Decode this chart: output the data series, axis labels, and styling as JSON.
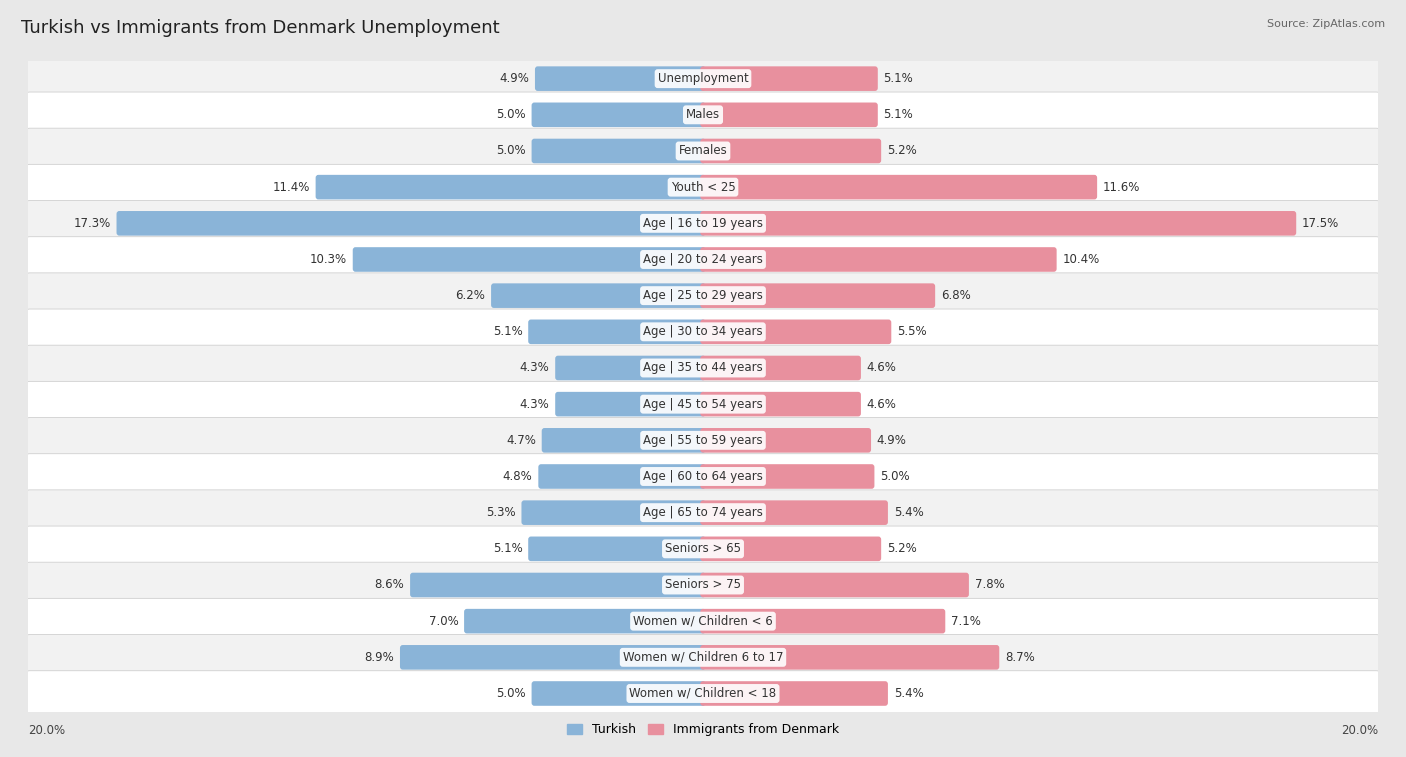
{
  "title": "Turkish vs Immigrants from Denmark Unemployment",
  "source": "Source: ZipAtlas.com",
  "categories": [
    "Unemployment",
    "Males",
    "Females",
    "Youth < 25",
    "Age | 16 to 19 years",
    "Age | 20 to 24 years",
    "Age | 25 to 29 years",
    "Age | 30 to 34 years",
    "Age | 35 to 44 years",
    "Age | 45 to 54 years",
    "Age | 55 to 59 years",
    "Age | 60 to 64 years",
    "Age | 65 to 74 years",
    "Seniors > 65",
    "Seniors > 75",
    "Women w/ Children < 6",
    "Women w/ Children 6 to 17",
    "Women w/ Children < 18"
  ],
  "turkish_values": [
    4.9,
    5.0,
    5.0,
    11.4,
    17.3,
    10.3,
    6.2,
    5.1,
    4.3,
    4.3,
    4.7,
    4.8,
    5.3,
    5.1,
    8.6,
    7.0,
    8.9,
    5.0
  ],
  "denmark_values": [
    5.1,
    5.1,
    5.2,
    11.6,
    17.5,
    10.4,
    6.8,
    5.5,
    4.6,
    4.6,
    4.9,
    5.0,
    5.4,
    5.2,
    7.8,
    7.1,
    8.7,
    5.4
  ],
  "turkish_color": "#8ab4d8",
  "denmark_color": "#e8909e",
  "turkish_label": "Turkish",
  "denmark_label": "Immigrants from Denmark",
  "axis_max": 20.0,
  "bg_color": "#e8e8e8",
  "row_bg_light": "#f2f2f2",
  "row_bg_white": "#ffffff",
  "title_fontsize": 13,
  "cat_fontsize": 8.5,
  "value_fontsize": 8.5,
  "legend_fontsize": 9
}
